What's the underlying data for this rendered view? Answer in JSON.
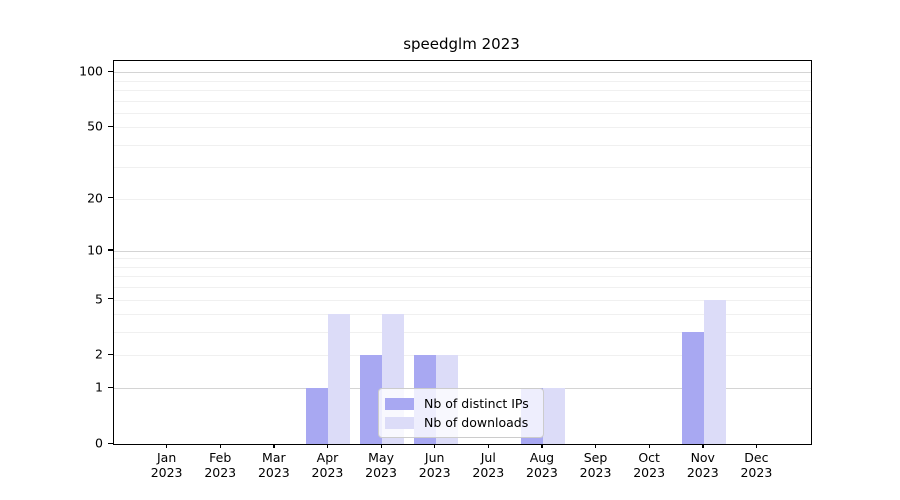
{
  "chart_data": {
    "type": "bar",
    "title": "speedglm 2023",
    "x_ticks": [
      {
        "month": "Jan",
        "year": "2023"
      },
      {
        "month": "Feb",
        "year": "2023"
      },
      {
        "month": "Mar",
        "year": "2023"
      },
      {
        "month": "Apr",
        "year": "2023"
      },
      {
        "month": "May",
        "year": "2023"
      },
      {
        "month": "Jun",
        "year": "2023"
      },
      {
        "month": "Jul",
        "year": "2023"
      },
      {
        "month": "Aug",
        "year": "2023"
      },
      {
        "month": "Sep",
        "year": "2023"
      },
      {
        "month": "Oct",
        "year": "2023"
      },
      {
        "month": "Nov",
        "year": "2023"
      },
      {
        "month": "Dec",
        "year": "2023"
      }
    ],
    "series": [
      {
        "name": "Nb of distinct IPs",
        "color": "#a8a8f2",
        "values": [
          0,
          0,
          0,
          1,
          2,
          2,
          0,
          1,
          0,
          0,
          3,
          0
        ]
      },
      {
        "name": "Nb of downloads",
        "color": "#dcdcf8",
        "values": [
          0,
          0,
          0,
          4,
          4,
          2,
          0,
          1,
          0,
          0,
          5,
          0
        ]
      }
    ],
    "y_ticks": [
      0,
      1,
      2,
      5,
      10,
      20,
      50,
      100
    ],
    "y_scale": "log1p",
    "ylim": [
      0,
      115
    ],
    "grid": true,
    "grid_major_color": "#d4d4d4",
    "grid_minor_color": "#f0f0f0",
    "legend_position": "lower center"
  }
}
